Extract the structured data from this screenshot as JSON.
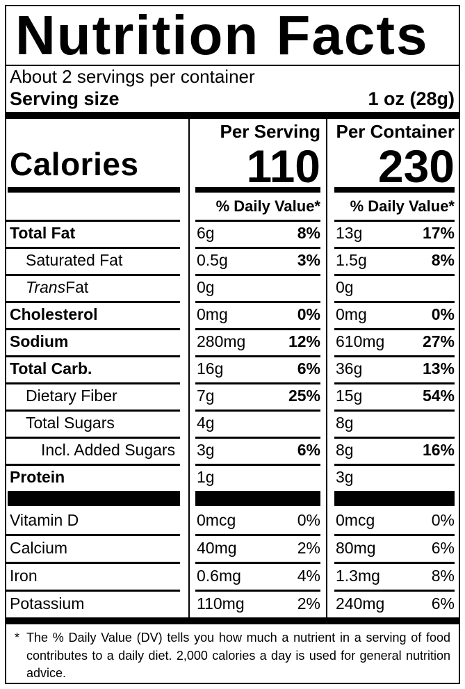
{
  "title": "Nutrition Facts",
  "servings_per_container": "About 2 servings per container",
  "serving_size": {
    "label": "Serving size",
    "value": "1 oz (28g)"
  },
  "columns": {
    "per_serving": "Per Serving",
    "per_container": "Per Container"
  },
  "calories": {
    "label": "Calories",
    "per_serving": "110",
    "per_container": "230"
  },
  "daily_value_header": "% Daily Value*",
  "nutrients": [
    {
      "name": "Total Fat",
      "ps_amount": "6g",
      "ps_dv": "8%",
      "pc_amount": "13g",
      "pc_dv": "17%"
    },
    {
      "name": "Saturated Fat",
      "ps_amount": "0.5g",
      "ps_dv": "3%",
      "pc_amount": "1.5g",
      "pc_dv": "8%"
    },
    {
      "name_italic": "Trans",
      "name": " Fat",
      "ps_amount": "0g",
      "ps_dv": "",
      "pc_amount": "0g",
      "pc_dv": ""
    },
    {
      "name": "Cholesterol",
      "ps_amount": "0mg",
      "ps_dv": "0%",
      "pc_amount": "0mg",
      "pc_dv": "0%"
    },
    {
      "name": "Sodium",
      "ps_amount": "280mg",
      "ps_dv": "12%",
      "pc_amount": "610mg",
      "pc_dv": "27%"
    },
    {
      "name": "Total Carb.",
      "ps_amount": "16g",
      "ps_dv": "6%",
      "pc_amount": "36g",
      "pc_dv": "13%"
    },
    {
      "name": "Dietary Fiber",
      "ps_amount": "7g",
      "ps_dv": "25%",
      "pc_amount": "15g",
      "pc_dv": "54%"
    },
    {
      "name": "Total Sugars",
      "ps_amount": "4g",
      "ps_dv": "",
      "pc_amount": "8g",
      "pc_dv": ""
    },
    {
      "name": "Incl. Added Sugars",
      "ps_amount": "3g",
      "ps_dv": "6%",
      "pc_amount": "8g",
      "pc_dv": "16%"
    },
    {
      "name": "Protein",
      "ps_amount": "1g",
      "ps_dv": "",
      "pc_amount": "3g",
      "pc_dv": ""
    }
  ],
  "micronutrients": [
    {
      "name": "Vitamin D",
      "ps_amount": "0mcg",
      "ps_dv": "0%",
      "pc_amount": "0mcg",
      "pc_dv": "0%"
    },
    {
      "name": "Calcium",
      "ps_amount": "40mg",
      "ps_dv": "2%",
      "pc_amount": "80mg",
      "pc_dv": "6%"
    },
    {
      "name": "Iron",
      "ps_amount": "0.6mg",
      "ps_dv": "4%",
      "pc_amount": "1.3mg",
      "pc_dv": "8%"
    },
    {
      "name": "Potassium",
      "ps_amount": "110mg",
      "ps_dv": "2%",
      "pc_amount": "240mg",
      "pc_dv": "6%"
    }
  ],
  "footnote": {
    "marker": "*",
    "text": "The % Daily Value (DV) tells you how much a nutrient in a serving of food contributes to a daily diet. 2,000 calories a day is used for general nutrition advice."
  }
}
